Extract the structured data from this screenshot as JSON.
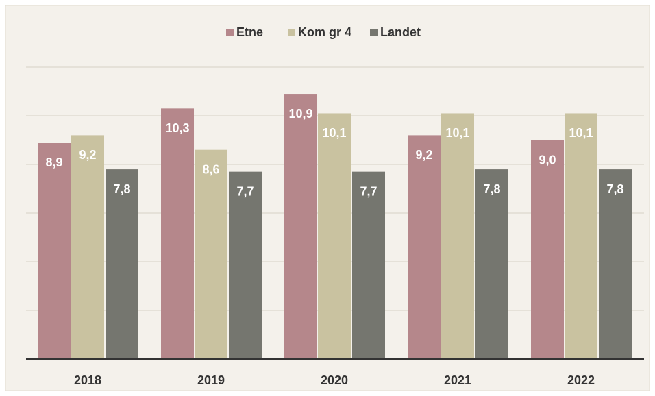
{
  "chart_data": {
    "type": "bar",
    "categories": [
      "2018",
      "2019",
      "2020",
      "2021",
      "2022"
    ],
    "series": [
      {
        "name": "Etne",
        "color": "#b5878b",
        "values": [
          8.9,
          10.3,
          10.9,
          9.2,
          9.0
        ],
        "value_labels": [
          "8,9",
          "10,3",
          "10,9",
          "9,2",
          "9,0"
        ]
      },
      {
        "name": "Kom gr 4",
        "color": "#c9c2a0",
        "values": [
          9.2,
          8.6,
          10.1,
          10.1,
          10.1
        ],
        "value_labels": [
          "9,2",
          "8,6",
          "10,1",
          "10,1",
          "10,1"
        ]
      },
      {
        "name": "Landet",
        "color": "#75766f",
        "values": [
          7.8,
          7.7,
          7.7,
          7.8,
          7.8
        ],
        "value_labels": [
          "7,8",
          "7,7",
          "7,7",
          "7,8",
          "7,8"
        ]
      }
    ],
    "ylim": [
      0,
      12
    ],
    "yticks": [
      0,
      2,
      4,
      6,
      8,
      10,
      12
    ],
    "grid": true,
    "legend": "top"
  }
}
